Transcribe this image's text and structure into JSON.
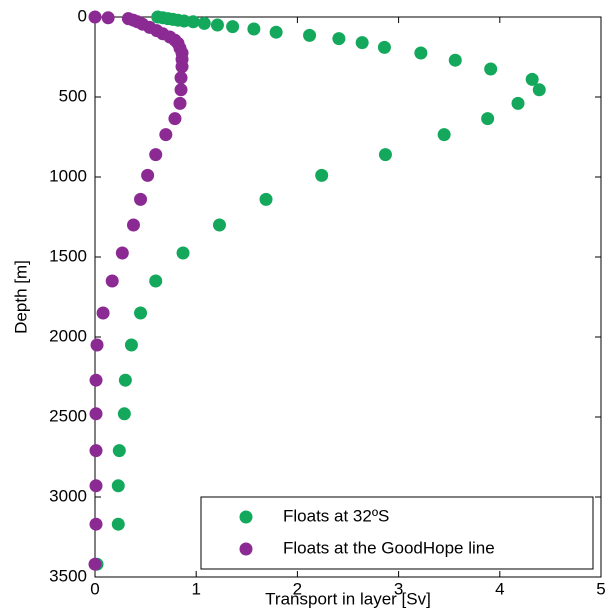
{
  "chart_data": {
    "type": "scatter",
    "xlabel": "Transport in layer [Sv]",
    "ylabel": "Depth [m]",
    "xlim": [
      0,
      5
    ],
    "ylim": [
      3500,
      0
    ],
    "xticks": [
      0,
      1,
      2,
      3,
      4,
      5
    ],
    "yticks": [
      0,
      500,
      1000,
      1500,
      2000,
      2500,
      3000,
      3500
    ],
    "legend": "lower right",
    "series": [
      {
        "name": "Floats at 32ºS",
        "color": "#13a85b",
        "x": [
          0.62,
          0.67,
          0.72,
          0.77,
          0.82,
          0.88,
          0.97,
          1.08,
          1.21,
          1.36,
          1.57,
          1.79,
          2.12,
          2.41,
          2.64,
          2.86,
          3.22,
          3.56,
          3.91,
          4.32,
          4.39,
          4.18,
          3.88,
          3.45,
          2.87,
          2.24,
          1.69,
          1.23,
          0.87,
          0.6,
          0.45,
          0.36,
          0.3,
          0.29,
          0.24,
          0.23,
          0.23,
          0.02
        ],
        "values": [
          0,
          5,
          10,
          15,
          20,
          25,
          30,
          40,
          50,
          60,
          75,
          95,
          115,
          135,
          160,
          190,
          225,
          270,
          325,
          390,
          455,
          540,
          635,
          735,
          860,
          990,
          1140,
          1300,
          1475,
          1650,
          1850,
          2050,
          2270,
          2480,
          2710,
          2930,
          3170,
          3420
        ]
      },
      {
        "name": "Floats at the GoodHope line",
        "color": "#8b2a93",
        "x": [
          0,
          0.13,
          0.33,
          0.38,
          0.42,
          0.47,
          0.54,
          0.61,
          0.67,
          0.74,
          0.79,
          0.82,
          0.84,
          0.86,
          0.86,
          0.86,
          0.85,
          0.85,
          0.84,
          0.79,
          0.7,
          0.6,
          0.52,
          0.45,
          0.38,
          0.27,
          0.17,
          0.08,
          0.02,
          0.01,
          0.01,
          0.01,
          0.01,
          0.01,
          0
        ],
        "values": [
          0,
          5,
          10,
          20,
          30,
          45,
          65,
          85,
          105,
          125,
          145,
          165,
          195,
          225,
          265,
          310,
          380,
          455,
          540,
          635,
          735,
          860,
          990,
          1140,
          1300,
          1475,
          1650,
          1850,
          2050,
          2270,
          2480,
          2710,
          2930,
          3170,
          3420
        ]
      }
    ]
  }
}
